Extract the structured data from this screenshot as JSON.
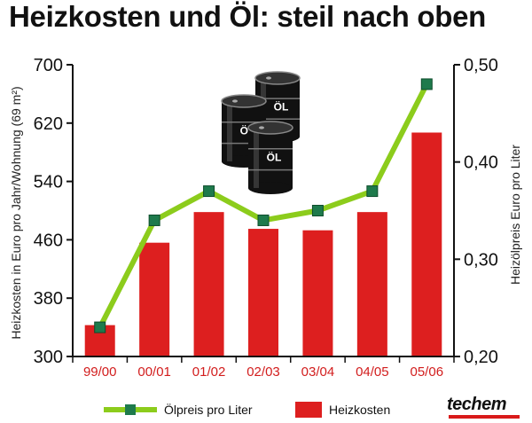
{
  "title": "Heizkosten und Öl: steil nach oben",
  "chart_data": {
    "type": "bar",
    "categories": [
      "99/00",
      "00/01",
      "01/02",
      "02/03",
      "03/04",
      "04/05",
      "05/06"
    ],
    "series": [
      {
        "name": "Heizkosten",
        "kind": "bar",
        "axis": "left",
        "values": [
          343,
          456,
          498,
          475,
          473,
          498,
          607
        ],
        "color": "#dd1f1f"
      },
      {
        "name": "Ölpreis pro Liter",
        "kind": "line",
        "axis": "right",
        "values": [
          0.23,
          0.34,
          0.37,
          0.34,
          0.35,
          0.37,
          0.48
        ],
        "color": "#8ccc1c",
        "marker_color": "#1e7a4c"
      }
    ],
    "ylabel": "Heizkosten in Euro pro Jahr/Wohnung (69 m²)",
    "ylabel_right": "Heizölpreis Euro pro Liter",
    "ylim": [
      300,
      700
    ],
    "yticks": [
      "300",
      "380",
      "460",
      "540",
      "620",
      "700"
    ],
    "ylim_right": [
      0.2,
      0.5
    ],
    "yticks_right": [
      "0,20",
      "0,30",
      "0,40",
      "0,50"
    ],
    "grid": false,
    "legend_position": "bottom"
  },
  "illustration": {
    "drum_label": "ÖL"
  },
  "logo": {
    "text": "techem",
    "accent_color": "#d91a1a"
  }
}
